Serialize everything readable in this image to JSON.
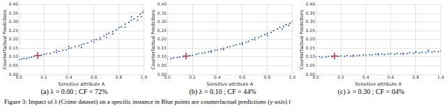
{
  "chart_data": [
    {
      "type": "scatter",
      "caption": "(a) λ = 0.00 ; CF = 72%",
      "x_label": "Sensitive attribute A",
      "y_label": "Counterfactual Predictions",
      "xlim": [
        0,
        1
      ],
      "ylim": [
        0,
        0.4
      ],
      "xticks": [
        {
          "value": 0,
          "label": "0.0"
        },
        {
          "value": 0.2,
          "label": "0.2"
        },
        {
          "value": 0.4,
          "label": "0.4"
        },
        {
          "value": 0.6,
          "label": "0.6"
        },
        {
          "value": 0.8,
          "label": "0.8"
        },
        {
          "value": 1,
          "label": "1.0"
        }
      ],
      "yticks": [
        {
          "value": 0,
          "label": "0.00"
        },
        {
          "value": 0.05,
          "label": "0.05"
        },
        {
          "value": 0.1,
          "label": "0.10"
        },
        {
          "value": 0.15,
          "label": "0.15"
        },
        {
          "value": 0.2,
          "label": "0.20"
        },
        {
          "value": 0.25,
          "label": "0.25"
        },
        {
          "value": 0.3,
          "label": "0.30"
        },
        {
          "value": 0.35,
          "label": "0.35"
        },
        {
          "value": 0.4,
          "label": "0.40"
        }
      ],
      "grid": true,
      "color": "#3b64a8",
      "marker": "circle",
      "x": [
        0.0,
        0.02,
        0.04,
        0.06,
        0.08,
        0.1,
        0.12,
        0.15,
        0.18,
        0.2,
        0.22,
        0.25,
        0.28,
        0.3,
        0.32,
        0.35,
        0.38,
        0.4,
        0.42,
        0.45,
        0.48,
        0.5,
        0.52,
        0.55,
        0.58,
        0.6,
        0.62,
        0.65,
        0.68,
        0.7,
        0.72,
        0.75,
        0.78,
        0.8,
        0.82,
        0.85,
        0.88,
        0.9,
        0.92,
        0.95,
        0.97,
        0.99,
        1.0,
        0.3,
        0.5,
        0.7,
        0.9,
        0.95,
        0.6,
        0.4,
        0.85,
        0.98,
        0.75,
        0.65
      ],
      "values": [
        0.085,
        0.088,
        0.092,
        0.09,
        0.095,
        0.1,
        0.102,
        0.108,
        0.11,
        0.115,
        0.118,
        0.12,
        0.128,
        0.125,
        0.132,
        0.138,
        0.14,
        0.148,
        0.152,
        0.16,
        0.163,
        0.17,
        0.175,
        0.18,
        0.19,
        0.198,
        0.2,
        0.21,
        0.22,
        0.228,
        0.235,
        0.245,
        0.255,
        0.268,
        0.272,
        0.288,
        0.298,
        0.31,
        0.318,
        0.33,
        0.345,
        0.355,
        0.365,
        0.138,
        0.155,
        0.212,
        0.33,
        0.31,
        0.185,
        0.16,
        0.27,
        0.33,
        0.232,
        0.2
      ],
      "highlight": {
        "x": 0.15,
        "y": 0.108,
        "color": "#e0302a",
        "marker": "cross"
      }
    },
    {
      "type": "scatter",
      "caption": "(b) λ = 0.10 ; CF = 44%",
      "x_label": "Sensitive attribute A",
      "y_label": "Counterfactual Predictions",
      "xlim": [
        0,
        1
      ],
      "ylim": [
        0,
        0.4
      ],
      "xticks": [
        {
          "value": 0,
          "label": "0.0"
        },
        {
          "value": 0.2,
          "label": "0.2"
        },
        {
          "value": 0.4,
          "label": "0.4"
        },
        {
          "value": 0.6,
          "label": "0.6"
        },
        {
          "value": 0.8,
          "label": "0.8"
        },
        {
          "value": 1,
          "label": "1.0"
        }
      ],
      "yticks": [
        {
          "value": 0,
          "label": "0.00"
        },
        {
          "value": 0.05,
          "label": "0.05"
        },
        {
          "value": 0.1,
          "label": "0.10"
        },
        {
          "value": 0.15,
          "label": "0.15"
        },
        {
          "value": 0.2,
          "label": "0.20"
        },
        {
          "value": 0.25,
          "label": "0.25"
        },
        {
          "value": 0.3,
          "label": "0.30"
        },
        {
          "value": 0.35,
          "label": "0.35"
        },
        {
          "value": 0.4,
          "label": "0.40"
        }
      ],
      "grid": true,
      "color": "#3b64a8",
      "marker": "circle",
      "x": [
        0.0,
        0.03,
        0.05,
        0.08,
        0.1,
        0.13,
        0.15,
        0.18,
        0.2,
        0.23,
        0.25,
        0.28,
        0.3,
        0.33,
        0.35,
        0.38,
        0.4,
        0.43,
        0.45,
        0.48,
        0.5,
        0.53,
        0.55,
        0.58,
        0.6,
        0.63,
        0.65,
        0.68,
        0.7,
        0.73,
        0.75,
        0.78,
        0.8,
        0.83,
        0.85,
        0.88,
        0.9,
        0.93,
        0.95,
        0.98,
        1.0,
        0.45,
        0.6,
        0.8,
        0.92,
        0.97,
        0.35,
        0.7
      ],
      "values": [
        0.09,
        0.092,
        0.095,
        0.098,
        0.1,
        0.102,
        0.105,
        0.108,
        0.11,
        0.115,
        0.12,
        0.122,
        0.125,
        0.13,
        0.135,
        0.138,
        0.14,
        0.145,
        0.15,
        0.155,
        0.16,
        0.165,
        0.17,
        0.175,
        0.18,
        0.185,
        0.19,
        0.2,
        0.21,
        0.212,
        0.22,
        0.228,
        0.235,
        0.24,
        0.25,
        0.26,
        0.27,
        0.275,
        0.285,
        0.292,
        0.3,
        0.142,
        0.172,
        0.222,
        0.26,
        0.28,
        0.128,
        0.198
      ],
      "highlight": {
        "x": 0.15,
        "y": 0.105,
        "color": "#e0302a",
        "marker": "cross"
      }
    },
    {
      "type": "scatter",
      "caption": "(c) λ = 0.30 ; CF = 04%",
      "x_label": "Sensitive attribute A",
      "y_label": "Counterfactual Predictions",
      "xlim": [
        0,
        1
      ],
      "ylim": [
        0,
        0.4
      ],
      "xticks": [
        {
          "value": 0,
          "label": "0.0"
        },
        {
          "value": 0.2,
          "label": "0.2"
        },
        {
          "value": 0.4,
          "label": "0.4"
        },
        {
          "value": 0.6,
          "label": "0.6"
        },
        {
          "value": 0.8,
          "label": "0.8"
        },
        {
          "value": 1,
          "label": "1.0"
        }
      ],
      "yticks": [
        {
          "value": 0,
          "label": "0.00"
        },
        {
          "value": 0.05,
          "label": "0.05"
        },
        {
          "value": 0.1,
          "label": "0.10"
        },
        {
          "value": 0.15,
          "label": "0.15"
        },
        {
          "value": 0.2,
          "label": "0.20"
        },
        {
          "value": 0.25,
          "label": "0.25"
        },
        {
          "value": 0.3,
          "label": "0.30"
        },
        {
          "value": 0.35,
          "label": "0.35"
        },
        {
          "value": 0.4,
          "label": "0.40"
        }
      ],
      "grid": true,
      "color": "#3b64a8",
      "marker": "circle",
      "x": [
        0.0,
        0.03,
        0.05,
        0.08,
        0.1,
        0.13,
        0.15,
        0.18,
        0.2,
        0.23,
        0.25,
        0.28,
        0.3,
        0.33,
        0.35,
        0.38,
        0.4,
        0.43,
        0.45,
        0.48,
        0.5,
        0.53,
        0.55,
        0.58,
        0.6,
        0.63,
        0.65,
        0.68,
        0.7,
        0.73,
        0.75,
        0.78,
        0.8,
        0.83,
        0.85,
        0.88,
        0.9,
        0.93,
        0.95,
        0.98,
        1.0,
        0.5,
        0.7,
        0.9,
        0.3,
        0.8
      ],
      "values": [
        0.1,
        0.102,
        0.098,
        0.1,
        0.104,
        0.101,
        0.105,
        0.103,
        0.106,
        0.104,
        0.108,
        0.105,
        0.11,
        0.107,
        0.109,
        0.112,
        0.11,
        0.113,
        0.111,
        0.115,
        0.112,
        0.116,
        0.114,
        0.117,
        0.118,
        0.116,
        0.12,
        0.118,
        0.122,
        0.12,
        0.124,
        0.121,
        0.126,
        0.123,
        0.128,
        0.125,
        0.13,
        0.127,
        0.132,
        0.13,
        0.135,
        0.118,
        0.115,
        0.138,
        0.104,
        0.13
      ],
      "highlight": {
        "x": 0.15,
        "y": 0.105,
        "color": "#e0302a",
        "marker": "cross"
      }
    }
  ],
  "figure_caption": "Figure 3: Impact of λ (Crime dataset) on a specific instance in Blue points are counterfactual predictions (y-axis) f"
}
